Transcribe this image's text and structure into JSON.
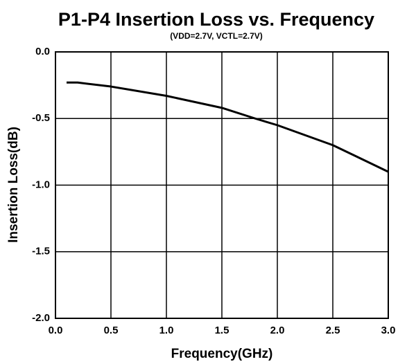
{
  "chart_data": {
    "type": "line",
    "title": "P1-P4 Insertion Loss vs. Frequency",
    "subtitle": "(VDD=2.7V, VCTL=2.7V)",
    "x_label": "Frequency(GHz)",
    "y_label": "Insertion Loss(dB)",
    "x": [
      0.1,
      0.2,
      0.5,
      1.0,
      1.5,
      1.8,
      2.0,
      2.5,
      3.0
    ],
    "series": [
      {
        "color": "#000000",
        "values": [
          -0.23,
          -0.23,
          -0.26,
          -0.33,
          -0.42,
          -0.5,
          -0.55,
          -0.7,
          -0.9
        ]
      }
    ],
    "xlim": [
      0,
      3
    ],
    "xticks": [
      {
        "value": 0,
        "label": "0.0"
      },
      0.5,
      {
        "value": 1,
        "label": "1.0"
      },
      1.5,
      {
        "value": 2,
        "label": "2.0"
      },
      2.5,
      {
        "value": 3,
        "label": "3.0"
      }
    ],
    "ylim": [
      -2,
      0
    ],
    "yticks": [
      {
        "value": 0,
        "label": "0.0"
      },
      -0.5,
      {
        "value": -1,
        "label": "-1.0"
      },
      -1.5,
      {
        "value": -2,
        "label": "-2.0"
      }
    ],
    "grid": true
  }
}
